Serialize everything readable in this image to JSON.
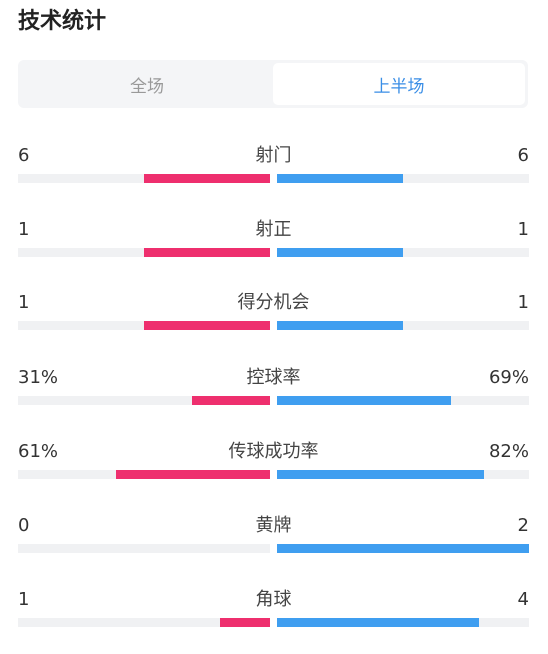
{
  "title": "技术统计",
  "tabs": [
    {
      "label": "全场",
      "active": false
    },
    {
      "label": "上半场",
      "active": true
    }
  ],
  "colors": {
    "home": "#ee2f6e",
    "away": "#3f9ef0",
    "track": "#f0f1f3",
    "accent": "#3a8ee6"
  },
  "stats": [
    {
      "label": "射门",
      "left": "6",
      "right": "6",
      "left_share": 0.5,
      "right_share": 0.5
    },
    {
      "label": "射正",
      "left": "1",
      "right": "1",
      "left_share": 0.5,
      "right_share": 0.5
    },
    {
      "label": "得分机会",
      "left": "1",
      "right": "1",
      "left_share": 0.5,
      "right_share": 0.5
    },
    {
      "label": "控球率",
      "left": "31%",
      "right": "69%",
      "left_share": 0.31,
      "right_share": 0.69
    },
    {
      "label": "传球成功率",
      "left": "61%",
      "right": "82%",
      "left_share": 0.61,
      "right_share": 0.82
    },
    {
      "label": "黄牌",
      "left": "0",
      "right": "2",
      "left_share": 0.0,
      "right_share": 1.0
    },
    {
      "label": "角球",
      "left": "1",
      "right": "4",
      "left_share": 0.2,
      "right_share": 0.8
    }
  ]
}
